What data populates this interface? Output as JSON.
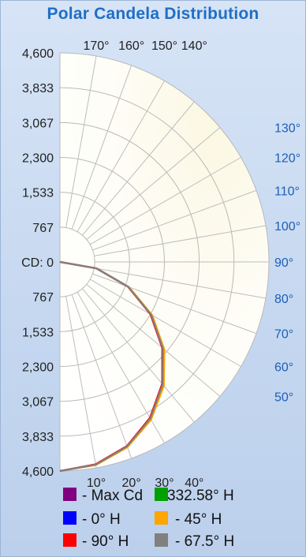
{
  "chart_data": {
    "type": "polar",
    "title": "Polar Candela Distribution",
    "radial_axis": {
      "label_prefix": "CD:",
      "range": [
        0,
        4600
      ],
      "upper_ticks": [
        "4,600",
        "3,833",
        "3,067",
        "2,300",
        "1,533",
        "767"
      ],
      "center_tick": "0",
      "lower_ticks": [
        "767",
        "1,533",
        "2,300",
        "3,067",
        "3,833",
        "4,600"
      ]
    },
    "angle_labels": {
      "top": [
        "170°",
        "160°",
        "150°",
        "140°"
      ],
      "right": [
        "130°",
        "120°",
        "110°",
        "100°",
        "90°",
        "80°",
        "70°",
        "60°",
        "50°"
      ],
      "bottom": [
        "10°",
        "20°",
        "30°",
        "40°"
      ]
    },
    "legend": [
      {
        "label": "- Max Cd",
        "color": "#800080"
      },
      {
        "label": "332.58° H",
        "color": "#00a000"
      },
      {
        "label": "- 0° H",
        "color": "#0000ff"
      },
      {
        "label": "- 45° H",
        "color": "#ffa500"
      },
      {
        "label": "- 90° H",
        "color": "#ff0000"
      },
      {
        "label": "- 67.5° H",
        "color": "#808080"
      }
    ],
    "series": [
      {
        "name": "- 0° H",
        "color": "#0000ff",
        "points": [
          [
            0,
            4600
          ],
          [
            10,
            4530
          ],
          [
            20,
            4320
          ],
          [
            30,
            3980
          ],
          [
            40,
            3520
          ],
          [
            50,
            2960
          ],
          [
            60,
            2320
          ],
          [
            70,
            1600
          ],
          [
            80,
            820
          ],
          [
            90,
            0
          ]
        ]
      },
      {
        "name": "- 45° H",
        "color": "#ffa500",
        "points": [
          [
            0,
            4600
          ],
          [
            10,
            4540
          ],
          [
            20,
            4340
          ],
          [
            30,
            4010
          ],
          [
            40,
            3560
          ],
          [
            50,
            3000
          ],
          [
            60,
            2350
          ],
          [
            70,
            1620
          ],
          [
            80,
            830
          ],
          [
            90,
            0
          ]
        ]
      },
      {
        "name": "- 90° H",
        "color": "#ff0000",
        "points": [
          [
            0,
            4600
          ],
          [
            10,
            4520
          ],
          [
            20,
            4310
          ],
          [
            30,
            3960
          ],
          [
            40,
            3500
          ],
          [
            50,
            2940
          ],
          [
            60,
            2300
          ],
          [
            70,
            1590
          ],
          [
            80,
            810
          ],
          [
            90,
            0
          ]
        ]
      },
      {
        "name": "- 67.5° H",
        "color": "#808080",
        "points": [
          [
            0,
            4600
          ],
          [
            10,
            4530
          ],
          [
            20,
            4320
          ],
          [
            30,
            3980
          ],
          [
            40,
            3520
          ],
          [
            50,
            2960
          ],
          [
            60,
            2320
          ],
          [
            70,
            1600
          ],
          [
            80,
            820
          ],
          [
            90,
            0
          ]
        ]
      }
    ]
  }
}
